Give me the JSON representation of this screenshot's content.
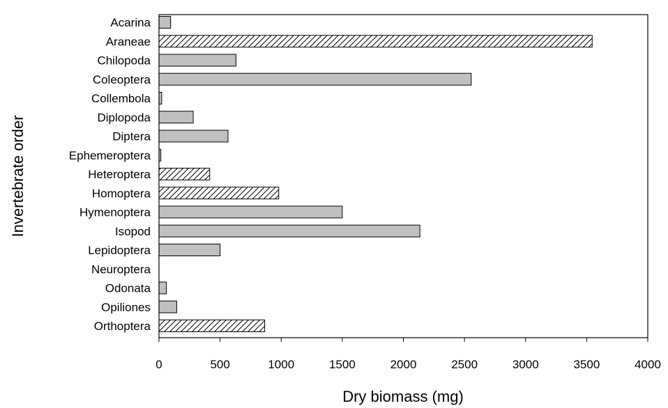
{
  "chart_data": {
    "type": "bar",
    "orientation": "horizontal",
    "xlabel": "Dry biomass (mg)",
    "ylabel": "Invertebrate order",
    "xlim": [
      0,
      4000
    ],
    "xticks": [
      0,
      500,
      1000,
      1500,
      2000,
      2500,
      3000,
      3500,
      4000
    ],
    "grid": false,
    "colors": {
      "solid_fill": "#c0c0c0",
      "hatched_fill": "#ffffff",
      "edge": "#000000"
    },
    "categories": [
      "Acarina",
      "Araneae",
      "Chilopoda",
      "Coleoptera",
      "Collembola",
      "Diplopoda",
      "Diptera",
      "Ephemeroptera",
      "Heteroptera",
      "Homoptera",
      "Hymenoptera",
      "Isopod",
      "Lepidoptera",
      "Neuroptera",
      "Odonata",
      "Opiliones",
      "Orthoptera"
    ],
    "values": [
      95,
      3545,
      630,
      2555,
      22,
      280,
      565,
      15,
      415,
      980,
      1500,
      2135,
      500,
      0,
      60,
      145,
      865
    ],
    "patterns": [
      "solid",
      "hatched",
      "solid",
      "solid",
      "solid",
      "solid",
      "solid",
      "solid",
      "hatched",
      "hatched",
      "solid",
      "solid",
      "solid",
      "solid",
      "solid",
      "solid",
      "hatched"
    ]
  }
}
